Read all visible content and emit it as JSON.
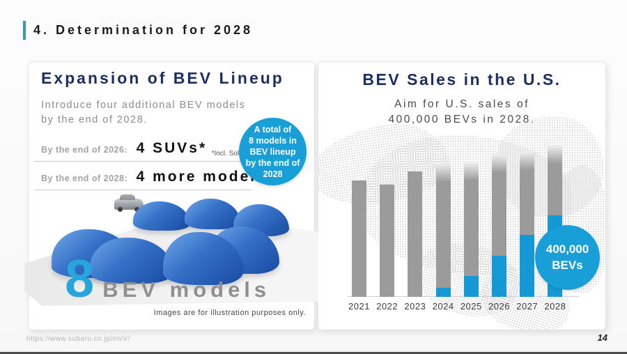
{
  "slide": {
    "title": "4. Determination for 2028",
    "source_url": "https://www.subaru.co.jp/en/ir/",
    "page_number": "14"
  },
  "left_panel": {
    "title": "Expansion of BEV Lineup",
    "subtitle_line1": "Introduce four additional BEV models",
    "subtitle_line2": "by the end of 2028.",
    "rows": [
      {
        "label": "By the end of 2026:",
        "value": "4 SUVs*",
        "footnote": "*Incl. Solterra"
      },
      {
        "label": "By the end of 2028:",
        "value": "4 more models",
        "footnote": ""
      }
    ],
    "badge": {
      "lines": [
        "A total of",
        "8 models in",
        "BEV lineup",
        "by the end of",
        "2028"
      ]
    },
    "big_number": "8",
    "big_number_label": "BEV models",
    "caption": "Images are for illustration purposes only."
  },
  "right_panel": {
    "title": "BEV Sales in the U.S.",
    "subtitle_line1": "Aim for U.S. sales of",
    "subtitle_line2": "400,000 BEVs in 2028.",
    "badge": {
      "lines": [
        "400,000",
        "BEVs"
      ]
    }
  },
  "chart_data": {
    "type": "bar",
    "title": "BEV Sales in the U.S.",
    "subtitle": "Aim for U.S. sales of 400,000 BEVs in 2028.",
    "categories": [
      "2021",
      "2022",
      "2023",
      "2024",
      "2025",
      "2026",
      "2027",
      "2028"
    ],
    "series": [
      {
        "name": "gray_bars_total",
        "color": "#9b9b9b",
        "values_pct_of_max": [
          77,
          74,
          83,
          88,
          89,
          94,
          96,
          100
        ]
      },
      {
        "name": "blue_highlight_bev",
        "color": "#1599d6",
        "values_pct_of_max": [
          0,
          0,
          0,
          6,
          14,
          27,
          41,
          54
        ]
      }
    ],
    "annotation": {
      "text": "400,000 BEVs",
      "applies_to": "2028"
    },
    "value_axis": "not labeled; bar heights estimated as percent of tallest bar (2028 = 100)",
    "legend": "none",
    "grid": false
  },
  "colors": {
    "accent_teal": "#2e9fa6",
    "heading_navy": "#1b2f63",
    "badge_cyan": "#189fd8",
    "bar_gray": "#9b9b9b",
    "bar_blue": "#1599d6"
  }
}
